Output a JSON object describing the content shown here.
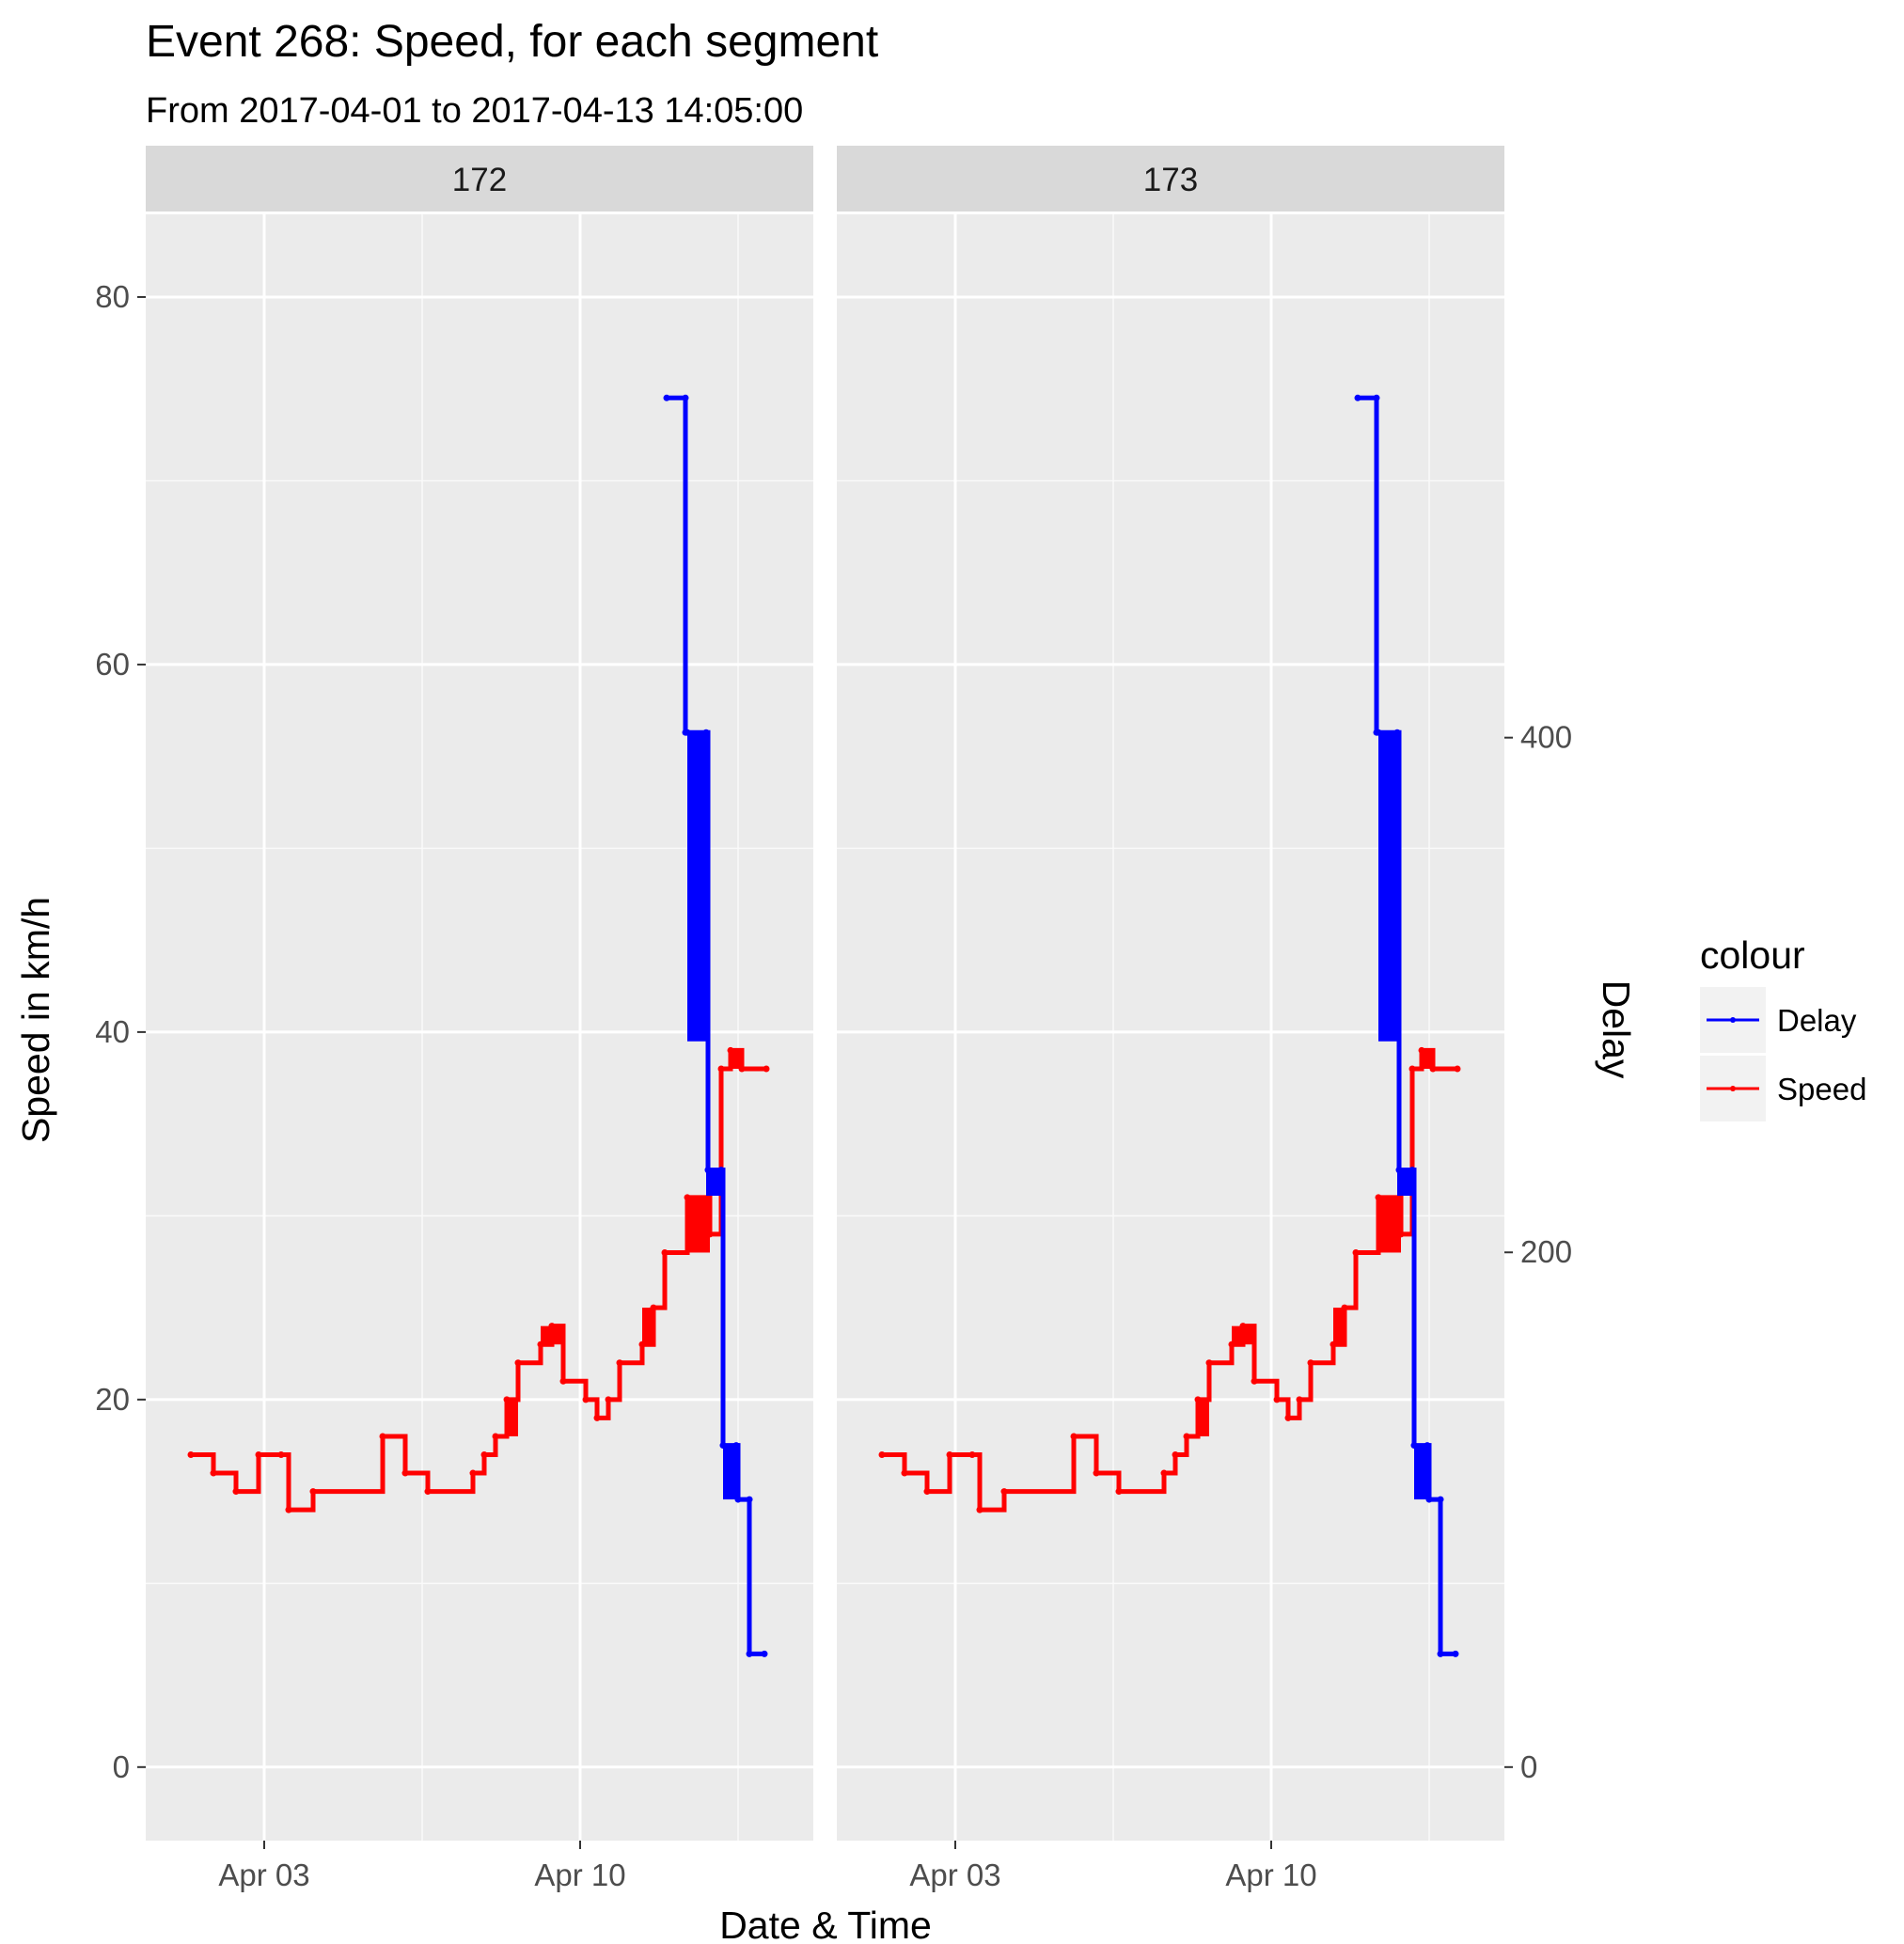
{
  "chart_data": {
    "type": "line",
    "title": "Event 268: Speed, for each segment",
    "subtitle": "From 2017-04-01 to 2017-04-13 14:05:00",
    "xlabel": "Date & Time",
    "ylabel": "Speed in km/h",
    "y2label": "Delay",
    "x_ticks": [
      "Apr 03",
      "Apr 10"
    ],
    "y_ticks": [
      0,
      20,
      40,
      60,
      80
    ],
    "y2_ticks": [
      0,
      200,
      400
    ],
    "y2_tick_labels": [
      "0",
      "200",
      "400"
    ],
    "y_ticks_labels": [
      "0",
      "20",
      "40",
      "60",
      "80"
    ],
    "x_range": [
      "2017-03-31 09:00",
      "2017-04-14 19:00"
    ],
    "ylim": [
      -4,
      84.5
    ],
    "y2_scale": "Delay = Speed × 7.14",
    "grid": true,
    "legend": {
      "title": "colour",
      "placement": "right",
      "entries": [
        "Delay",
        "Speed"
      ]
    },
    "colors": {
      "Delay": "#0000ff",
      "Speed": "#ff0000",
      "panel": "#ebebeb",
      "strip": "#d9d9d9"
    },
    "facets": [
      "172",
      "173"
    ],
    "series": [
      {
        "name": "Speed",
        "step": [
          [
            "2017-04-01 09:00",
            17
          ],
          [
            "2017-04-01 21:00",
            16
          ],
          [
            "2017-04-02 09:00",
            15
          ],
          [
            "2017-04-02 21:00",
            17
          ],
          [
            "2017-04-03 09:00",
            17
          ],
          [
            "2017-04-03 13:00",
            14
          ],
          [
            "2017-04-04 02:00",
            15
          ],
          [
            "2017-04-05 15:00",
            18
          ],
          [
            "2017-04-06 03:00",
            16
          ],
          [
            "2017-04-06 15:00",
            15
          ],
          [
            "2017-04-07 15:00",
            16
          ],
          [
            "2017-04-07 21:00",
            17
          ],
          [
            "2017-04-08 03:00",
            18
          ],
          [
            "2017-04-08 09:00",
            20
          ],
          [
            "2017-04-08 15:00",
            22
          ],
          [
            "2017-04-09 03:00",
            23
          ],
          [
            "2017-04-09 09:00",
            24
          ],
          [
            "2017-04-09 15:00",
            21
          ],
          [
            "2017-04-10 03:00",
            20
          ],
          [
            "2017-04-10 09:00",
            19
          ],
          [
            "2017-04-10 15:00",
            20
          ],
          [
            "2017-04-10 21:00",
            22
          ],
          [
            "2017-04-11 09:00",
            23
          ],
          [
            "2017-04-11 15:00",
            25
          ],
          [
            "2017-04-11 21:00",
            28
          ],
          [
            "2017-04-12 09:00",
            31
          ],
          [
            "2017-04-12 21:00",
            29
          ],
          [
            "2017-04-13 03:00",
            38
          ],
          [
            "2017-04-13 08:00",
            39
          ],
          [
            "2017-04-13 14:00",
            38
          ],
          [
            "2017-04-14 03:00",
            38
          ]
        ],
        "hatched": [
          [
            "2017-04-12 09:00",
            "2017-04-12 21:00",
            28,
            31
          ],
          [
            "2017-04-09 03:00",
            "2017-04-09 15:00",
            23,
            24
          ],
          [
            "2017-04-08 09:00",
            "2017-04-08 15:00",
            18,
            20
          ],
          [
            "2017-04-11 09:00",
            "2017-04-11 15:00",
            23,
            25
          ],
          [
            "2017-04-13 08:00",
            "2017-04-13 14:00",
            38,
            39
          ]
        ]
      },
      {
        "name": "Delay",
        "step": [
          [
            "2017-04-11 22:00",
            532
          ],
          [
            "2017-04-12 08:00",
            532
          ],
          [
            "2017-04-12 08:00",
            402
          ],
          [
            "2017-04-12 09:00",
            402
          ],
          [
            "2017-04-12 19:00",
            402
          ],
          [
            "2017-04-12 20:00",
            232
          ],
          [
            "2017-04-13 03:00",
            232
          ],
          [
            "2017-04-13 04:00",
            125
          ],
          [
            "2017-04-13 11:00",
            125
          ],
          [
            "2017-04-13 12:00",
            104
          ],
          [
            "2017-04-13 18:00",
            104
          ],
          [
            "2017-04-13 18:00",
            44
          ],
          [
            "2017-04-14 02:00",
            44
          ]
        ],
        "hatched": [
          [
            "2017-04-12 09:00",
            "2017-04-12 19:00",
            282,
            402
          ],
          [
            "2017-04-12 19:00",
            "2017-04-13 03:00",
            222,
            232
          ],
          [
            "2017-04-13 04:00",
            "2017-04-13 11:00",
            104,
            125
          ]
        ]
      }
    ]
  }
}
